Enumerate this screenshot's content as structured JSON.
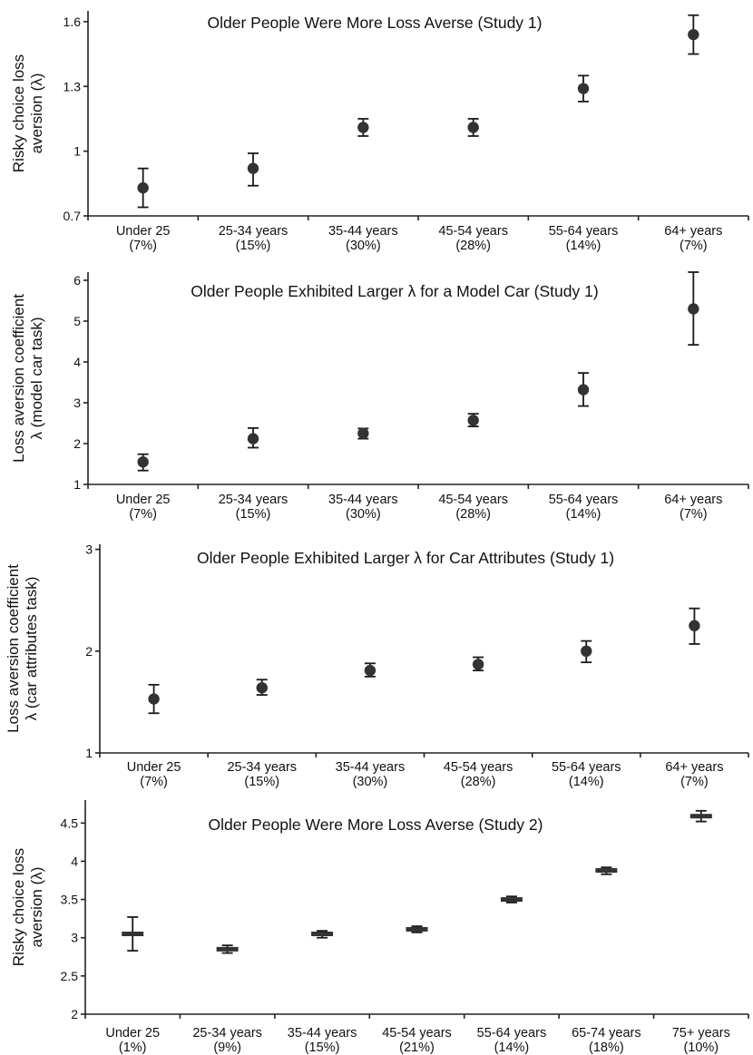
{
  "chart_data": [
    {
      "type": "scatter",
      "title": "Older People Were More Loss Averse (Study 1)",
      "ylabel": [
        "Risky choice loss",
        "aversion (λ)"
      ],
      "xlabel": "",
      "marker": "circle",
      "ylim": [
        0.7,
        1.65
      ],
      "yticks": [
        "0.7",
        "1",
        "1.3",
        "1.6"
      ],
      "ytick_values": [
        0.7,
        1.0,
        1.3,
        1.6
      ],
      "categories": [
        [
          "Under 25",
          "(7%)"
        ],
        [
          "25-34 years",
          "(15%)"
        ],
        [
          "35-44 years",
          "(30%)"
        ],
        [
          "45-54 years",
          "(28%)"
        ],
        [
          "55-64 years",
          "(14%)"
        ],
        [
          "64+ years",
          "(7%)"
        ]
      ],
      "values": [
        0.83,
        0.92,
        1.11,
        1.11,
        1.29,
        1.54
      ],
      "err_low": [
        0.74,
        0.84,
        1.07,
        1.07,
        1.23,
        1.45
      ],
      "err_high": [
        0.92,
        0.99,
        1.15,
        1.15,
        1.35,
        1.63
      ],
      "grid": false,
      "color": "#333333"
    },
    {
      "type": "scatter",
      "title": "Older People Exhibited Larger λ for a Model Car (Study 1)",
      "ylabel": [
        "Loss aversion coefficient",
        "λ (model car task)"
      ],
      "xlabel": "",
      "marker": "circle",
      "ylim": [
        1,
        6.2
      ],
      "yticks": [
        "1",
        "2",
        "3",
        "4",
        "5",
        "6"
      ],
      "ytick_values": [
        1,
        2,
        3,
        4,
        5,
        6
      ],
      "categories": [
        [
          "Under 25",
          "(7%)"
        ],
        [
          "25-34 years",
          "(15%)"
        ],
        [
          "35-44 years",
          "(30%)"
        ],
        [
          "45-54 years",
          "(28%)"
        ],
        [
          "55-64 years",
          "(14%)"
        ],
        [
          "64+ years",
          "(7%)"
        ]
      ],
      "values": [
        1.55,
        2.12,
        2.25,
        2.57,
        3.32,
        5.3
      ],
      "err_low": [
        1.34,
        1.9,
        2.12,
        2.42,
        2.92,
        4.42
      ],
      "err_high": [
        1.74,
        2.38,
        2.37,
        2.73,
        3.73,
        6.2
      ],
      "grid": false,
      "color": "#333333"
    },
    {
      "type": "scatter",
      "title": "Older People Exhibited Larger λ for Car Attributes (Study 1)",
      "ylabel": [
        "Loss aversion coefficient",
        "λ (car attributes task)"
      ],
      "xlabel": "",
      "marker": "circle",
      "ylim": [
        1,
        3.05
      ],
      "yticks": [
        "1",
        "2",
        "3"
      ],
      "ytick_values": [
        1,
        2,
        3
      ],
      "categories": [
        [
          "Under 25",
          "(7%)"
        ],
        [
          "25-34 years",
          "(15%)"
        ],
        [
          "35-44 years",
          "(30%)"
        ],
        [
          "45-54 years",
          "(28%)"
        ],
        [
          "55-64 years",
          "(14%)"
        ],
        [
          "64+ years",
          "(7%)"
        ]
      ],
      "values": [
        1.53,
        1.64,
        1.81,
        1.87,
        2.0,
        2.25
      ],
      "err_low": [
        1.39,
        1.57,
        1.75,
        1.81,
        1.89,
        2.07
      ],
      "err_high": [
        1.67,
        1.72,
        1.88,
        1.94,
        2.1,
        2.42
      ],
      "grid": false,
      "color": "#333333"
    },
    {
      "type": "scatter",
      "title": "Older People Were More Loss Averse (Study 2)",
      "ylabel": [
        "Risky choice loss",
        "aversion (λ)"
      ],
      "xlabel": "",
      "marker": "dash",
      "ylim": [
        2,
        4.8
      ],
      "yticks": [
        "2",
        "2.5",
        "3",
        "3.5",
        "4",
        "4.5"
      ],
      "ytick_values": [
        2,
        2.5,
        3,
        3.5,
        4,
        4.5
      ],
      "categories": [
        [
          "Under 25",
          "(1%)"
        ],
        [
          "25-34 years",
          "(9%)"
        ],
        [
          "35-44 years",
          "(15%)"
        ],
        [
          "45-54 years",
          "(21%)"
        ],
        [
          "55-64 years",
          "(14%)"
        ],
        [
          "65-74 years",
          "(18%)"
        ],
        [
          "75+ years",
          "(10%)"
        ]
      ],
      "values": [
        3.05,
        2.85,
        3.05,
        3.11,
        3.5,
        3.88,
        4.59
      ],
      "err_low": [
        2.83,
        2.8,
        3.0,
        3.07,
        3.46,
        3.83,
        4.52
      ],
      "err_high": [
        3.27,
        2.9,
        3.09,
        3.15,
        3.54,
        3.92,
        4.66
      ],
      "grid": false,
      "color": "#333333"
    }
  ]
}
